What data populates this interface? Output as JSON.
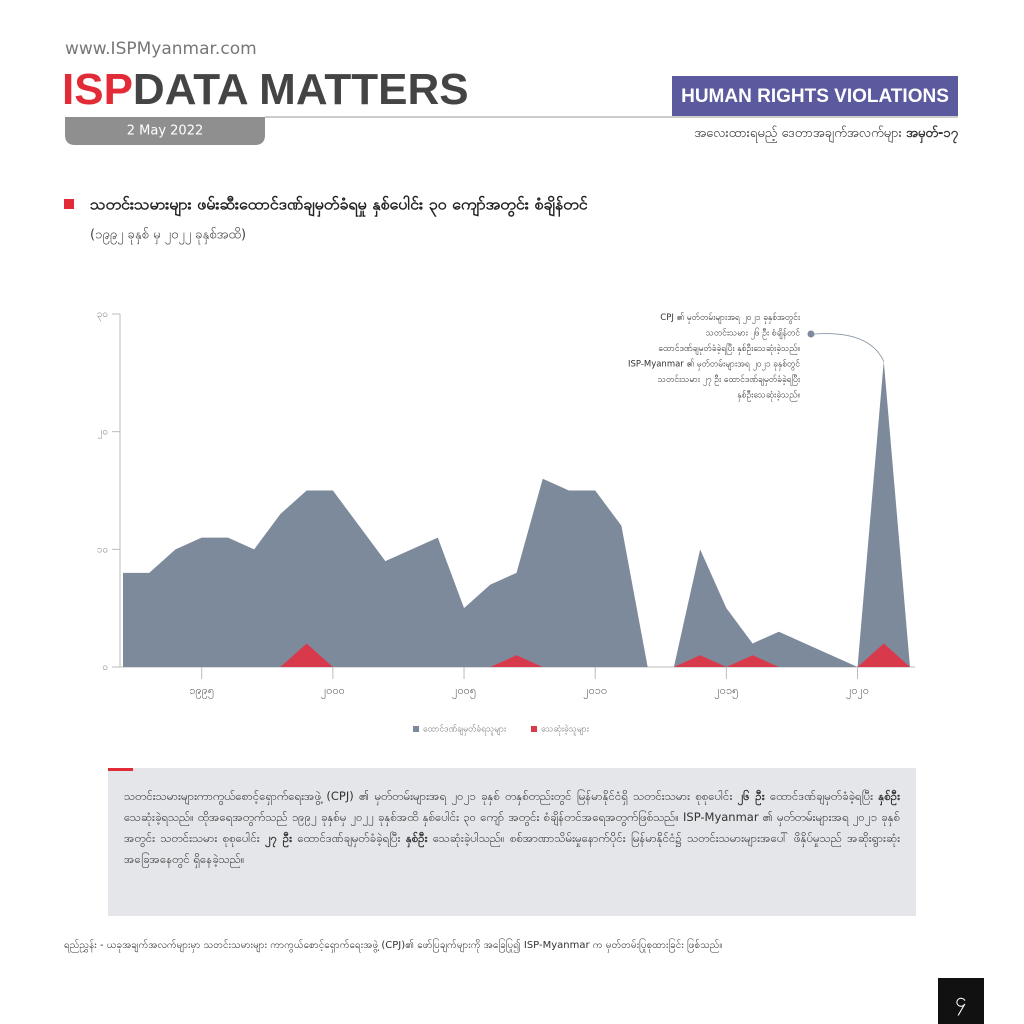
{
  "header": {
    "url": "www.ISPMyanmar.com",
    "brand_isp": "ISP",
    "brand_rest": "DATA MATTERS",
    "date": "2 May 2022",
    "tag": "HUMAN RIGHTS VIOLATIONS",
    "series_text": "အလေးထားရမည့် ဒေတာအချက်အလက်များ",
    "series_number": "အမှတ်-၁၇"
  },
  "chart_data": {
    "type": "area",
    "title": "သတင်းသမားများ ဖမ်းဆီးထောင်ဒဏ်ချမှတ်ခံရမှု နှစ်ပေါင်း ၃၀ ကျော်အတွင်း စံချိန်တင်",
    "subtitle": "(၁၉၉၂ ခုနှစ် မှ ၂၀၂၂ ခုနှစ်အထိ)",
    "x": [
      1992,
      1993,
      1994,
      1995,
      1996,
      1997,
      1998,
      1999,
      2000,
      2001,
      2002,
      2003,
      2004,
      2005,
      2006,
      2007,
      2008,
      2009,
      2010,
      2011,
      2012,
      2013,
      2014,
      2015,
      2016,
      2017,
      2018,
      2019,
      2020,
      2021,
      2022
    ],
    "series": [
      {
        "name": "ထောင်ဒဏ်ချမှတ်ခံရသူများ",
        "color": "#7d8a9c",
        "values": [
          8,
          8,
          10,
          11,
          11,
          10,
          13,
          15,
          15,
          12,
          9,
          10,
          11,
          5,
          7,
          8,
          16,
          15,
          15,
          12,
          0,
          0,
          10,
          5,
          2,
          3,
          2,
          1,
          0,
          26,
          0
        ]
      },
      {
        "name": "သေဆုံးခဲ့သူများ",
        "color": "#d93a4b",
        "values": [
          0,
          0,
          0,
          0,
          0,
          0,
          0,
          2,
          0,
          0,
          0,
          0,
          0,
          0,
          0,
          1,
          0,
          0,
          0,
          0,
          0,
          0,
          1,
          0,
          1,
          0,
          0,
          0,
          0,
          2,
          0
        ]
      }
    ],
    "xlim": [
      1992,
      2022
    ],
    "xticks": [
      {
        "value": 1995,
        "label": "၁၉၉၅"
      },
      {
        "value": 2000,
        "label": "၂၀၀၀"
      },
      {
        "value": 2005,
        "label": "၂၀၀၅"
      },
      {
        "value": 2010,
        "label": "၂၀၁၀"
      },
      {
        "value": 2015,
        "label": "၂၀၁၅"
      },
      {
        "value": 2020,
        "label": "၂၀၂၀"
      }
    ],
    "ylim": [
      0,
      30
    ],
    "yticks": [
      {
        "value": 0,
        "label": "၀"
      },
      {
        "value": 10,
        "label": "၁၀"
      },
      {
        "value": 20,
        "label": "၂၀"
      },
      {
        "value": 30,
        "label": "၃၀"
      }
    ],
    "legend": "bottom",
    "annotation": [
      "CPJ ၏ မှတ်တမ်းများအရ ၂၀၂၁ ခုနှစ်အတွင်း",
      "သတင်းသမား ၂၆ ဦး စံချိန်တင်",
      "ထောင်ဒဏ်ချမှတ်ခံခဲ့ရပြီး နှစ်ဦးသေဆုံးခဲ့သည်။",
      "ISP-Myanmar ၏ မှတ်တမ်းများအရ ၂၀၂၁ ခုနှစ်တွင်",
      "သတင်းသမား ၂၇ ဦး ထောင်ဒဏ်ချမှတ်ခံခဲ့ရပြီး",
      "နှစ်ဦးသေဆုံးခဲ့သည်။"
    ]
  },
  "body": [
    {
      "text": "သတင်းသမားများကာကွယ်စောင့်ရှောက်ရေးအဖွဲ့ (CPJ) ၏ မှတ်တမ်းများအရ ၂၀၂၁ ခုနှစ် တနှစ်တည်းတွင် မြန်မာနိုင်ငံရှိ သတင်းသမား စုစုပေါင်း "
    },
    {
      "text": "၂၆ ဦး",
      "bold": true
    },
    {
      "text": " ထောင်ဒဏ်ချမှတ်ခံခဲ့ရပြီး "
    },
    {
      "text": "နှစ်ဦး",
      "bold": true
    },
    {
      "text": " သေဆုံးခဲ့ရသည်။ ထိုအရေအတွက်သည် ၁၉၉၂ ခုနှစ်မှ ၂၀၂၂ ခုနှစ်အထိ နှစ်ပေါင်း ၃၀ ကျော် အတွင်း စံချိန်တင်အရေအတွက်ဖြစ်သည်။ ISP-Myanmar ၏ မှတ်တမ်းများအရ ၂၀၂၁ ခုနှစ်အတွင်း သတင်းသမား စုစုပေါင်း "
    },
    {
      "text": "၂၇ ဦး",
      "bold": true
    },
    {
      "text": " ထောင်ဒဏ်ချမှတ်ခံခဲ့ရပြီး "
    },
    {
      "text": "နှစ်ဦး",
      "bold": true
    },
    {
      "text": " သေဆုံးခဲ့ပါသည်။ စစ်အာဏာသိမ်းမှုနောက်ပိုင်း မြန်မာနိုင်ငံ၌ သတင်းသမားများအပေါ် ဖိနှိပ်မှုသည် အဆိုးရွားဆုံး အခြေအနေတွင် ရှိနေခဲ့သည်။"
    }
  ],
  "note": "ရည်ညွှန်း -  ယခုအချက်အလက်များမှာ သတင်းသမားများ ကာကွယ်စောင့်ရှောက်ရေးအဖွဲ့ (CPJ)၏ ဖော်ပြချက်များကို အခြေပြု၍ ISP-Myanmar က မှတ်တမ်းပြုစုထားခြင်း ဖြစ်သည်။",
  "page_number": "၄"
}
